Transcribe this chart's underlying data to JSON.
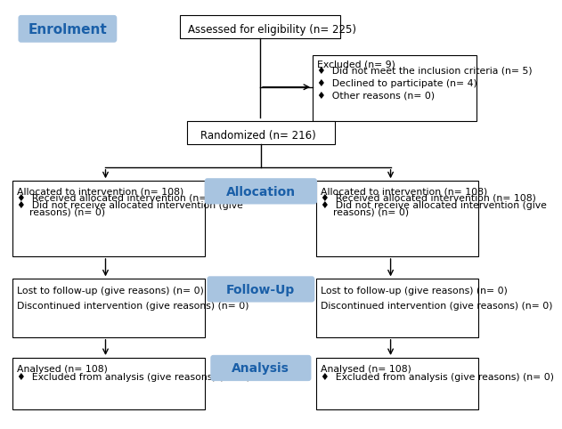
{
  "bg_color": "#ffffff",
  "blue_fill": "#a8c4e0",
  "blue_text": "#1a5fa8",
  "enrolment_label": "Enrolment",
  "allocation_label": "Allocation",
  "followup_label": "Follow-Up",
  "analysis_label": "Analysis",
  "assessed_text": "Assessed for eligibility (n= 225)",
  "excluded_lines": [
    "Excluded (n= 9)",
    "♦  Did not meet the inclusion criteria (n= 5)",
    "",
    "♦  Declined to participate (n= 4)",
    "",
    "♦  Other reasons (n= 0)"
  ],
  "randomized_text": "Randomized (n= 216)",
  "left_alloc_lines": [
    "Allocated to intervention (n= 108)",
    "♦  Received allocated intervention (n= 108)",
    "♦  Did not receive allocated intervention (give",
    "    reasons) (n= 0)"
  ],
  "right_alloc_lines": [
    "Allocated to intervention (n= 108)",
    "♦  Received allocated intervention (n= 108)",
    "♦  Did not receive allocated intervention (give",
    "    reasons) (n= 0)"
  ],
  "left_follow_lines": [
    "Lost to follow-up (give reasons) (n= 0)",
    "",
    "Discontinued intervention (give reasons) (n= 0)"
  ],
  "right_follow_lines": [
    "Lost to follow-up (give reasons) (n= 0)",
    "",
    "Discontinued intervention (give reasons) (n= 0)"
  ],
  "left_analysis_lines": [
    "Analysed (n= 108)",
    "♦  Excluded from analysis (give reasons) (n= 0)"
  ],
  "right_analysis_lines": [
    "Analysed (n= 108)",
    "♦  Excluded from analysis (give reasons) (n= 0)"
  ],
  "arrow_color": "#000000",
  "line_color": "#000000",
  "box_edge_color": "#000000"
}
